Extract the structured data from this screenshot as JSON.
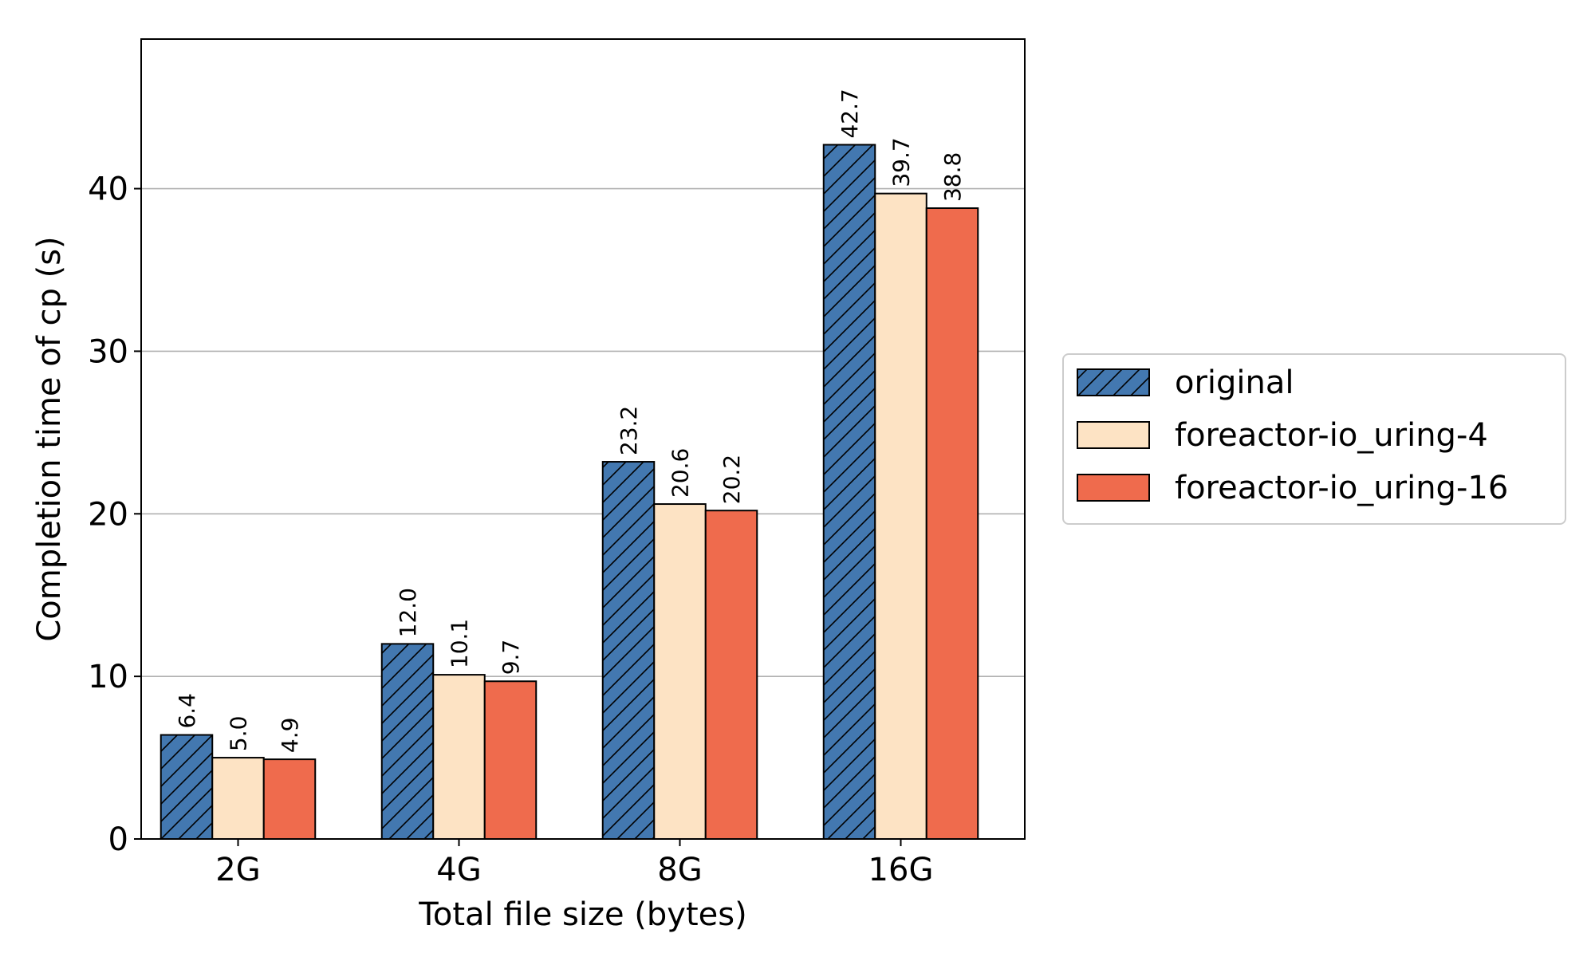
{
  "chart_data": {
    "type": "bar",
    "categories": [
      "2G",
      "4G",
      "8G",
      "16G"
    ],
    "series": [
      {
        "name": "original",
        "values": [
          6.4,
          12.0,
          23.2,
          42.7
        ],
        "labels": [
          "6.4",
          "12.0",
          "23.2",
          "42.7"
        ],
        "color": "#4378b0",
        "hatch": "diagonal"
      },
      {
        "name": "foreactor-io_uring-4",
        "values": [
          5.0,
          10.1,
          20.6,
          39.7
        ],
        "labels": [
          "5.0",
          "10.1",
          "20.6",
          "39.7"
        ],
        "color": "#fde3c4",
        "hatch": "none"
      },
      {
        "name": "foreactor-io_uring-16",
        "values": [
          4.9,
          9.7,
          20.2,
          38.8
        ],
        "labels": [
          "4.9",
          "9.7",
          "20.2",
          "38.8"
        ],
        "color": "#ef6b4d",
        "hatch": "none"
      }
    ],
    "xlabel": "Total file size (bytes)",
    "ylabel": "Completion time of cp (s)",
    "ylim": [
      0,
      49.2
    ],
    "yticks": [
      0,
      10,
      20,
      30,
      40
    ],
    "grid": "horizontal",
    "legend_position": "right"
  }
}
